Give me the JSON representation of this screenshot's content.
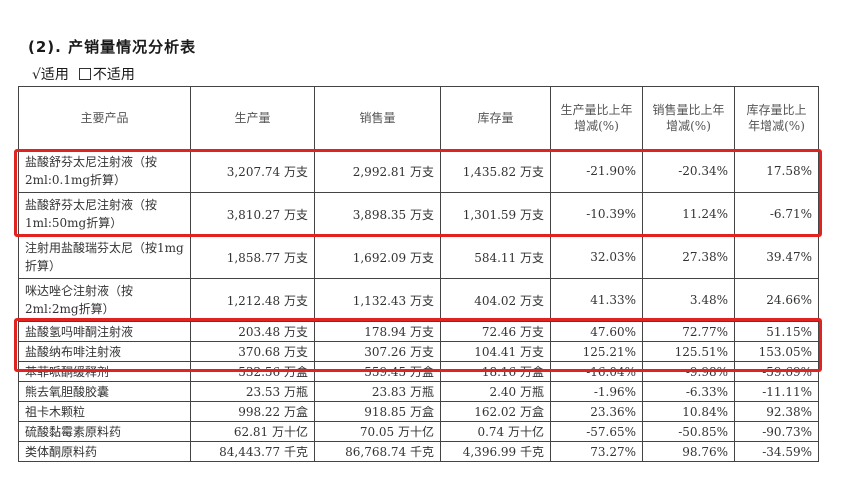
{
  "section_title": "(2).  产销量情况分析表",
  "applicability": {
    "applicable": "√适用",
    "not_applicable": "不适用"
  },
  "table": {
    "headers": [
      "主要产品",
      "生产量",
      "销售量",
      "库存量",
      "生产量比上年增减(%)",
      "销售量比上年增减(%)",
      "库存量比上年增减(%)"
    ],
    "rows": [
      {
        "name": "盐酸舒芬太尼注射液（按2ml:0.1mg折算）",
        "production": "3,207.74 万支",
        "sales": "2,992.81 万支",
        "inventory": "1,435.82 万支",
        "prod_change": "-21.90%",
        "sales_change": "-20.34%",
        "inv_change": "17.58%"
      },
      {
        "name": "盐酸舒芬太尼注射液（按1ml:50mg折算）",
        "production": "3,810.27 万支",
        "sales": "3,898.35 万支",
        "inventory": "1,301.59 万支",
        "prod_change": "-10.39%",
        "sales_change": "11.24%",
        "inv_change": "-6.71%"
      },
      {
        "name": "注射用盐酸瑞芬太尼（按1mg折算）",
        "production": "1,858.77 万支",
        "sales": "1,692.09 万支",
        "inventory": "584.11 万支",
        "prod_change": "32.03%",
        "sales_change": "27.38%",
        "inv_change": "39.47%"
      },
      {
        "name": "咪达唑仑注射液（按2ml:2mg折算）",
        "production": "1,212.48 万支",
        "sales": "1,132.43 万支",
        "inventory": "404.02 万支",
        "prod_change": "41.33%",
        "sales_change": "3.48%",
        "inv_change": "24.66%"
      },
      {
        "name": "盐酸氢吗啡酮注射液",
        "production": "203.48 万支",
        "sales": "178.94 万支",
        "inventory": "72.46 万支",
        "prod_change": "47.60%",
        "sales_change": "72.77%",
        "inv_change": "51.15%"
      },
      {
        "name": "盐酸纳布啡注射液",
        "production": "370.68 万支",
        "sales": "307.26 万支",
        "inventory": "104.41 万支",
        "prod_change": "125.21%",
        "sales_change": "125.51%",
        "inv_change": "153.05%"
      },
      {
        "name": "苯菲哌酮缓释剂",
        "production": "532.56 万盒",
        "sales": "559.45 万盒",
        "inventory": "18.16 万盒",
        "prod_change": "-16.04%",
        "sales_change": "-9.98%",
        "inv_change": "-59.69%"
      },
      {
        "name": "熊去氧胆酸胶囊",
        "production": "23.53 万瓶",
        "sales": "23.83 万瓶",
        "inventory": "2.40 万瓶",
        "prod_change": "-1.96%",
        "sales_change": "-6.33%",
        "inv_change": "-11.11%"
      },
      {
        "name": "祖卡木颗粒",
        "production": "998.22 万盒",
        "sales": "918.85 万盒",
        "inventory": "162.02 万盒",
        "prod_change": "23.36%",
        "sales_change": "10.84%",
        "inv_change": "92.38%"
      },
      {
        "name": "硫酸黏霉素原料药",
        "production": "62.81 万十亿",
        "sales": "70.05 万十亿",
        "inventory": "0.74 万十亿",
        "prod_change": "-57.65%",
        "sales_change": "-50.85%",
        "inv_change": "-90.73%"
      },
      {
        "name": "类体酮原料药",
        "production": "84,443.77 千克",
        "sales": "86,768.74 千克",
        "inventory": "4,396.99 千克",
        "prod_change": "73.27%",
        "sales_change": "98.76%",
        "inv_change": "-34.59%"
      }
    ]
  },
  "highlight_color": "#e1221f"
}
